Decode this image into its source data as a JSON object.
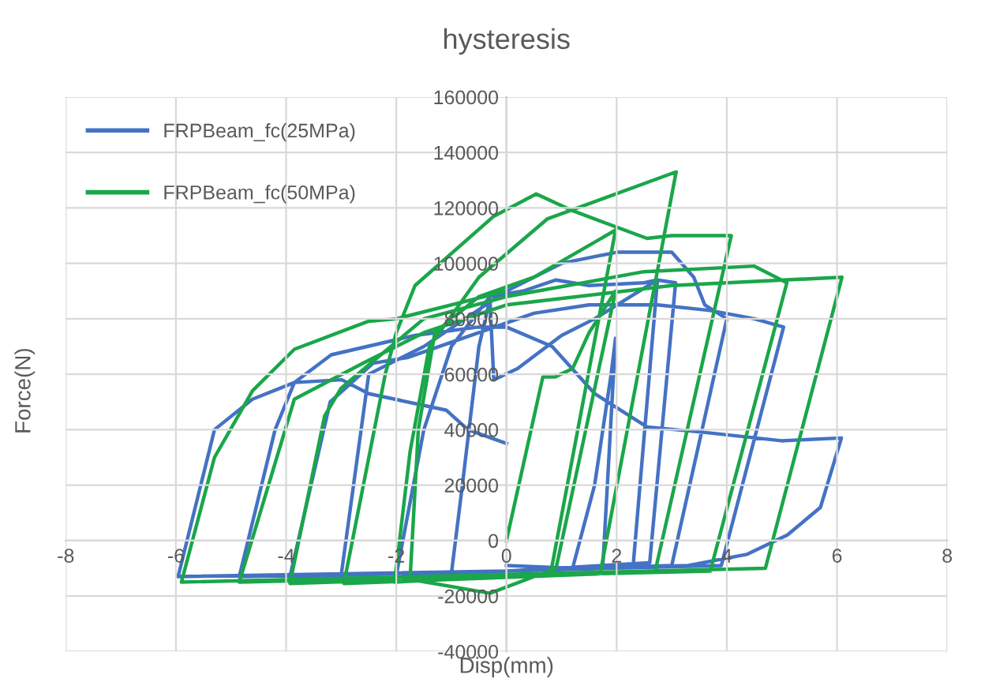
{
  "chart_data": {
    "type": "line",
    "title": "hysteresis",
    "xlabel": "Disp(mm)",
    "ylabel": "Force(N)",
    "xlim": [
      -8,
      8
    ],
    "xticks": [
      -8,
      -6,
      -4,
      -2,
      0,
      2,
      4,
      6,
      8
    ],
    "ylim": [
      -40000,
      160000
    ],
    "yticks": [
      -40000,
      -20000,
      0,
      20000,
      40000,
      60000,
      80000,
      100000,
      120000,
      140000,
      160000
    ],
    "grid": true,
    "legend": "top left",
    "marker": "none",
    "line_style": "solid",
    "series": [
      {
        "name": "FRPBeam_fc(25MPa)",
        "color": "#4472c4",
        "x": [
          0,
          1.2,
          1.6,
          1.9,
          1.98,
          1.75,
          0,
          -1.0,
          -0.8,
          -0.5,
          -0.3,
          -0.23,
          0.2,
          1.0,
          1.6,
          2.74,
          2.3,
          0,
          -2.0,
          -1.5,
          -1.0,
          -0.3,
          0.3,
          0.9,
          1.5,
          2.5,
          2.74,
          3.07,
          2.6,
          0,
          -3.0,
          -2.5,
          -1.5,
          0,
          1,
          2,
          3,
          3.4,
          3.6,
          4.0,
          3.0,
          0,
          -3.93,
          -3.2,
          -2.42,
          -1.8,
          -0.5,
          0.5,
          1.5,
          2.74,
          3.7,
          4.5,
          5.03,
          3.9,
          0,
          -4.85,
          -4.2,
          -3.85,
          -3.18,
          -1.66,
          -0.52,
          0,
          0.83,
          1.6,
          2.55,
          3.6,
          4.99,
          6.08,
          5.7,
          5.1,
          4.36,
          3.3,
          0,
          -5.96,
          -5.3,
          -4.61,
          -3.85,
          -2.99,
          -2.5,
          -1.09,
          -0.7,
          0
        ],
        "values": [
          -9000,
          -10000,
          20000,
          60000,
          73000,
          -9000,
          -11000,
          -12000,
          20000,
          70000,
          87000,
          58000,
          62000,
          74000,
          80000,
          94000,
          -9000,
          -11000,
          -12500,
          40000,
          70000,
          88000,
          90000,
          94000,
          92000,
          93000,
          94000,
          93000,
          -8000,
          -11000,
          -12500,
          60000,
          70000,
          90000,
          100000,
          104000,
          104000,
          95000,
          85000,
          80000,
          -9000,
          -11000,
          -13000,
          50000,
          64000,
          66000,
          75000,
          82000,
          85000,
          85000,
          83000,
          80000,
          77000,
          -9000,
          -11000,
          -13000,
          40000,
          57000,
          67000,
          74000,
          77000,
          77000,
          70000,
          53000,
          41000,
          39000,
          36000,
          37000,
          12000,
          2000,
          -5000,
          -9000,
          -11000,
          -13000,
          40000,
          51000,
          57000,
          58000,
          53000,
          47000,
          40000,
          35000
        ]
      },
      {
        "name": "FRPBeam_fc(50MPa)",
        "color": "#1aa64a",
        "x": [
          0,
          0.66,
          0.88,
          1.2,
          1.5,
          1.98,
          0.9,
          -0.3,
          -1.75,
          -1.6,
          -1.3,
          -0.5,
          0.5,
          1.98,
          0.8,
          -2.03,
          -1.75,
          -1.4,
          -0.5,
          0.74,
          3.08,
          1.7,
          -2.95,
          -2.2,
          -2.0,
          -1.66,
          -0.23,
          0.54,
          1.2,
          2.55,
          3.0,
          4.08,
          2.7,
          -3.93,
          -3.3,
          -3.0,
          -2.4,
          -1.5,
          0,
          2.5,
          4.5,
          5.09,
          3.7,
          -4.85,
          -3.85,
          -2.6,
          -1.5,
          0,
          3,
          6.09,
          4.7,
          -5.9,
          -5.3,
          -4.61,
          -3.85,
          -2.52,
          -2,
          0
        ],
        "values": [
          0,
          59000,
          59000,
          62000,
          75000,
          90000,
          -10000,
          -19000,
          -14000,
          40000,
          75000,
          88000,
          95000,
          112000,
          -12000,
          -15000,
          32000,
          70000,
          95000,
          116000,
          133000,
          -12000,
          -15500,
          60000,
          75000,
          92000,
          117000,
          125000,
          119000,
          109000,
          110000,
          110000,
          -11000,
          -15500,
          45000,
          55000,
          65000,
          80000,
          88000,
          97000,
          99000,
          93000,
          -11000,
          -15000,
          51000,
          64000,
          75000,
          85000,
          92000,
          95000,
          -10000,
          -15000,
          30000,
          54000,
          69000,
          79000,
          80000,
          90000
        ]
      }
    ]
  }
}
